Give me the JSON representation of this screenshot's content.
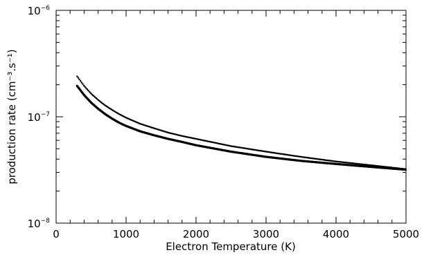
{
  "chart_data": {
    "type": "scatter",
    "xlabel": "Electron Temperature (K)",
    "ylabel": "production rate (cm⁻³.s⁻¹)",
    "xlim": [
      0,
      5000
    ],
    "ylim": [
      1e-08,
      1e-06
    ],
    "yscale": "log",
    "grid": false,
    "x_ticks": [
      0,
      1000,
      2000,
      3000,
      4000,
      5000
    ],
    "x_tick_labels": [
      "0",
      "1000",
      "2000",
      "3000",
      "4000",
      "5000"
    ],
    "y_ticks": [
      1e-08,
      1e-07,
      1e-06
    ],
    "y_tick_labels": [
      {
        "base": "10",
        "exp": "−8"
      },
      {
        "base": "10",
        "exp": "−7"
      },
      {
        "base": "10",
        "exp": "−6"
      }
    ],
    "series": [
      {
        "style": "solid-dense",
        "color": "#000000",
        "points": [
          [
            300,
            1.95e-07
          ],
          [
            400,
            1.6e-07
          ],
          [
            500,
            1.36e-07
          ],
          [
            600,
            1.19e-07
          ],
          [
            700,
            1.06e-07
          ],
          [
            800,
            9.6e-08
          ],
          [
            900,
            8.8e-08
          ],
          [
            1000,
            8.2e-08
          ],
          [
            1200,
            7.3e-08
          ],
          [
            1400,
            6.7e-08
          ],
          [
            1600,
            6.2e-08
          ],
          [
            1800,
            5.8e-08
          ],
          [
            2000,
            5.4e-08
          ],
          [
            2500,
            4.7e-08
          ],
          [
            3000,
            4.2e-08
          ],
          [
            3500,
            3.85e-08
          ],
          [
            4000,
            3.6e-08
          ],
          [
            4500,
            3.38e-08
          ],
          [
            5000,
            3.18e-08
          ]
        ]
      },
      {
        "style": "dotted",
        "color": "#000000",
        "points": [
          [
            300,
            2.4e-07
          ],
          [
            400,
            1.95e-07
          ],
          [
            500,
            1.65e-07
          ],
          [
            600,
            1.44e-07
          ],
          [
            700,
            1.28e-07
          ],
          [
            800,
            1.16e-07
          ],
          [
            900,
            1.06e-07
          ],
          [
            1000,
            9.8e-08
          ],
          [
            1200,
            8.6e-08
          ],
          [
            1400,
            7.8e-08
          ],
          [
            1600,
            7.1e-08
          ],
          [
            1800,
            6.6e-08
          ],
          [
            2000,
            6.2e-08
          ],
          [
            2500,
            5.3e-08
          ],
          [
            3000,
            4.7e-08
          ],
          [
            3500,
            4.2e-08
          ],
          [
            4000,
            3.8e-08
          ],
          [
            4500,
            3.5e-08
          ],
          [
            5000,
            3.22e-08
          ]
        ]
      }
    ]
  }
}
